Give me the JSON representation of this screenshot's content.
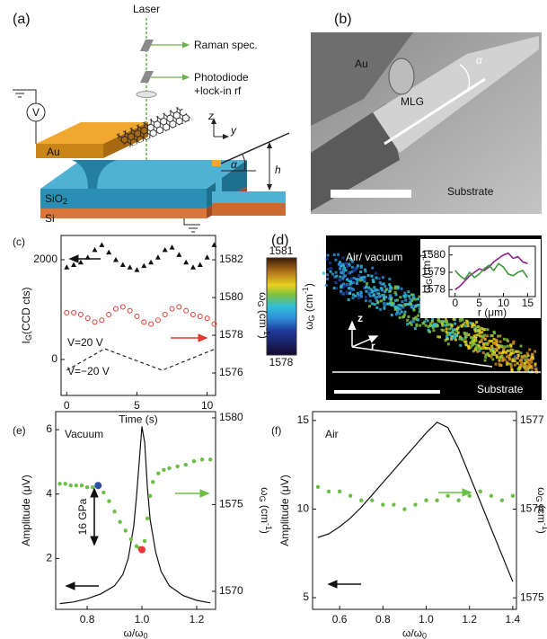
{
  "figure": {
    "a": {
      "panel": "(a)",
      "laser": "Laser",
      "raman": "Raman spec.",
      "photodiode": "Photodiode",
      "lockin": "+lock-in rf",
      "voltage": "V",
      "au": "Au",
      "sio2": {
        "parts": [
          "SiO",
          "2"
        ],
        "shifts": [
          "base",
          "sub"
        ]
      },
      "si": "Si",
      "z": "z",
      "y": "y",
      "alpha": "α",
      "h": "h"
    },
    "b": {
      "panel": "(b)",
      "au": "Au",
      "mlg": "MLG",
      "alpha": "α",
      "substrate": "Substrate"
    },
    "d": {
      "panel": "(d)",
      "medium": "Air/ vacuum",
      "z": "z",
      "r": "r",
      "substrate": "Substrate",
      "colorbar": {
        "max": 1581,
        "min": 1578,
        "label": {
          "parts": [
            "ω",
            "G",
            " (cm",
            "-1",
            ")"
          ],
          "shifts": [
            "base",
            "sub",
            "base",
            "sup",
            "base"
          ]
        }
      }
    }
  },
  "chart_data": [
    {
      "type": "line",
      "panel": "(c)",
      "xlabel": "Time (s)",
      "ylabel": {
        "parts": [
          "I",
          "G",
          "(CCD cts)"
        ],
        "shifts": [
          "base",
          "sub",
          "base"
        ]
      },
      "y2label": {
        "parts": [
          "ω",
          "G",
          " (cm",
          "-1",
          ")"
        ],
        "shifts": [
          "base",
          "sub",
          "base",
          "sup",
          "base"
        ]
      },
      "xlim": [
        -0.4,
        10.6
      ],
      "xticks": [
        0,
        5,
        10
      ],
      "ylim": [
        -721,
        2486
      ],
      "yticks": [
        0,
        2000
      ],
      "y2lim": [
        1574.81,
        1583.29
      ],
      "y2ticks": [
        1576,
        1578,
        1580,
        1582
      ],
      "annotations": [
        "V=20 V",
        "V=−20 V"
      ],
      "series": [
        {
          "marker": "triangle",
          "color": "#111111",
          "axis": "y",
          "x": [
            0,
            0.5,
            1,
            1.5,
            2,
            2.5,
            3,
            3.5,
            4,
            4.5,
            5,
            5.5,
            6,
            6.5,
            7,
            7.5,
            8,
            8.5,
            9,
            9.5,
            10,
            10.5
          ],
          "values": [
            1850,
            1900,
            1950,
            2050,
            2200,
            2300,
            2150,
            2000,
            1900,
            1850,
            1800,
            1880,
            1950,
            2050,
            2200,
            2250,
            2100,
            1950,
            1850,
            1900,
            2050,
            2300
          ]
        },
        {
          "marker": "circle",
          "color": "#e03a2f",
          "axis": "y2",
          "x": [
            0,
            0.5,
            1,
            1.5,
            2,
            2.5,
            3,
            3.5,
            4,
            4.5,
            5,
            5.5,
            6,
            6.5,
            7,
            7.5,
            8,
            8.5,
            9,
            9.5,
            10,
            10.5
          ],
          "values": [
            1579.2,
            1579.2,
            1579.1,
            1578.9,
            1578.7,
            1578.8,
            1579.1,
            1579.4,
            1579.5,
            1579.3,
            1579.0,
            1578.7,
            1578.6,
            1578.8,
            1579.1,
            1579.4,
            1579.5,
            1579.3,
            1579.1,
            1579.0,
            1578.9,
            1578.6
          ]
        },
        {
          "marker": "dashed",
          "color": "#222222",
          "axis": "v",
          "x": [
            0,
            2.7,
            6.8,
            10.6
          ],
          "values": [
            -20,
            20,
            -20,
            20
          ]
        }
      ]
    },
    {
      "type": "line",
      "panel": "(e)",
      "xlabel": {
        "parts": [
          "ω/ω",
          "0"
        ],
        "shifts": [
          "base",
          "sub"
        ]
      },
      "ylabel": "Amplitude (μV)",
      "y2label": {
        "parts": [
          "ω",
          "G",
          " (cm",
          "-1",
          ")"
        ],
        "shifts": [
          "base",
          "sub",
          "base",
          "sup",
          "base"
        ]
      },
      "xlim": [
        0.685,
        1.269
      ],
      "xticks": [
        0.8,
        {
          "value": 1,
          "label": "1.0"
        },
        1.2
      ],
      "ylim": [
        0.42,
        6.56
      ],
      "yticks": [
        2,
        4,
        6
      ],
      "y2lim": [
        1568.96,
        1580.36
      ],
      "y2ticks": [
        1570,
        1575,
        1580
      ],
      "annotations": [
        "Vacuum",
        "16 GPa"
      ],
      "series": [
        {
          "marker": "line",
          "color": "#111111",
          "axis": "y",
          "x": [
            0.7,
            0.75,
            0.8,
            0.85,
            0.9,
            0.93,
            0.95,
            0.97,
            0.98,
            0.99,
            1.0,
            1.01,
            1.02,
            1.03,
            1.05,
            1.07,
            1.1,
            1.15,
            1.2,
            1.25
          ],
          "values": [
            0.6,
            0.65,
            0.75,
            0.9,
            1.15,
            1.5,
            2.0,
            3.0,
            3.9,
            5.0,
            6.1,
            5.6,
            4.2,
            3.2,
            2.2,
            1.6,
            1.15,
            0.85,
            0.7,
            0.62
          ]
        },
        {
          "marker": "dot",
          "color": "#6abf45",
          "axis": "y2",
          "x": [
            0.7,
            0.72,
            0.74,
            0.76,
            0.78,
            0.8,
            0.82,
            0.84,
            0.86,
            0.88,
            0.9,
            0.92,
            0.94,
            0.96,
            0.98,
            0.99,
            1.0,
            1.01,
            1.02,
            1.03,
            1.04,
            1.06,
            1.08,
            1.1,
            1.13,
            1.16,
            1.19,
            1.22,
            1.25
          ],
          "values": [
            1576.2,
            1576.2,
            1576.1,
            1576.1,
            1576.1,
            1576.0,
            1576.0,
            1576.0,
            1575.7,
            1575.2,
            1574.6,
            1574.0,
            1573.5,
            1573.0,
            1572.6,
            1572.5,
            1572.4,
            1572.9,
            1574.2,
            1575.5,
            1576.3,
            1576.8,
            1577.0,
            1577.1,
            1577.2,
            1577.3,
            1577.5,
            1577.6,
            1577.6
          ]
        },
        {
          "marker": "bigdot",
          "color": "#2a4fa8",
          "axis": "y2",
          "x": [
            0.84
          ],
          "values": [
            1576.1
          ]
        },
        {
          "marker": "bigdot",
          "color": "#e8343c",
          "axis": "y2",
          "x": [
            1.0
          ],
          "values": [
            1572.4
          ]
        }
      ]
    },
    {
      "type": "line",
      "panel": "(f)",
      "xlabel": {
        "parts": [
          "ω/ω",
          "0"
        ],
        "shifts": [
          "base",
          "sub"
        ]
      },
      "ylabel": "Amplitude (μV)",
      "y2label": {
        "parts": [
          "ω",
          "G",
          " (cm",
          "-1",
          ")"
        ],
        "shifts": [
          "base",
          "sub",
          "base",
          "sup",
          "base"
        ]
      },
      "xlim": [
        0.475,
        1.417
      ],
      "xticks": [
        0.6,
        0.8,
        {
          "value": 1,
          "label": "1.0"
        },
        1.2,
        1.4
      ],
      "ylim": [
        4.34,
        15.5
      ],
      "yticks": [
        5,
        10,
        15
      ],
      "y2lim": [
        1574.87,
        1577.1
      ],
      "y2ticks": [
        1575,
        1576,
        1577
      ],
      "annotations": [
        "Air"
      ],
      "series": [
        {
          "marker": "line",
          "color": "#111111",
          "axis": "y",
          "x": [
            0.5,
            0.55,
            0.6,
            0.65,
            0.7,
            0.75,
            0.8,
            0.85,
            0.9,
            0.95,
            1.0,
            1.05,
            1.1,
            1.15,
            1.2,
            1.25,
            1.3,
            1.35,
            1.4
          ],
          "values": [
            8.4,
            8.6,
            9.0,
            9.5,
            10.1,
            10.8,
            11.5,
            12.2,
            12.9,
            13.6,
            14.3,
            14.9,
            14.6,
            13.4,
            11.9,
            10.4,
            8.9,
            7.4,
            5.9
          ]
        },
        {
          "marker": "dot",
          "color": "#6abf45",
          "axis": "y2",
          "x": [
            0.5,
            0.55,
            0.6,
            0.65,
            0.7,
            0.75,
            0.8,
            0.85,
            0.9,
            0.95,
            1.0,
            1.05,
            1.1,
            1.15,
            1.2,
            1.25,
            1.3,
            1.35,
            1.4
          ],
          "values": [
            1576.25,
            1576.2,
            1576.2,
            1576.15,
            1576.1,
            1576.1,
            1576.05,
            1576.05,
            1576.0,
            1576.05,
            1576.1,
            1576.1,
            1576.15,
            1576.1,
            1576.15,
            1576.2,
            1576.15,
            1576.1,
            1576.15
          ]
        }
      ]
    },
    {
      "type": "line",
      "xlabel": "r (μm)",
      "ylabel": {
        "parts": [
          "ω",
          "G",
          "(cm",
          "-1",
          ")"
        ],
        "shifts": [
          "base",
          "sub",
          "base",
          "sup",
          "base"
        ]
      },
      "xlim": [
        -1.25,
        16.6
      ],
      "xticks": [
        0,
        5,
        10,
        15
      ],
      "ylim": [
        1577.6,
        1580.5
      ],
      "yticks": [
        1578,
        1579,
        1580
      ],
      "series": [
        {
          "marker": "line",
          "color": "#8e1e8e",
          "axis": "y",
          "x": [
            0,
            1,
            2,
            3,
            4,
            5,
            6,
            7,
            8,
            9,
            10,
            11,
            12,
            13,
            14,
            15
          ],
          "values": [
            1578.0,
            1578.2,
            1578.5,
            1578.8,
            1579.0,
            1579.2,
            1579.1,
            1579.3,
            1579.6,
            1579.8,
            1580.0,
            1580.1,
            1579.8,
            1579.9,
            1579.6,
            1579.5
          ]
        },
        {
          "marker": "line",
          "color": "#3a9a3a",
          "axis": "y",
          "x": [
            0,
            1,
            2,
            3,
            4,
            5,
            6,
            7,
            8,
            9,
            10,
            11,
            12,
            13,
            14,
            15
          ],
          "values": [
            1579.1,
            1578.8,
            1578.6,
            1579.0,
            1578.7,
            1578.9,
            1579.2,
            1579.4,
            1579.1,
            1579.5,
            1579.3,
            1578.9,
            1578.8,
            1579.0,
            1579.1,
            1578.7
          ]
        }
      ]
    }
  ]
}
